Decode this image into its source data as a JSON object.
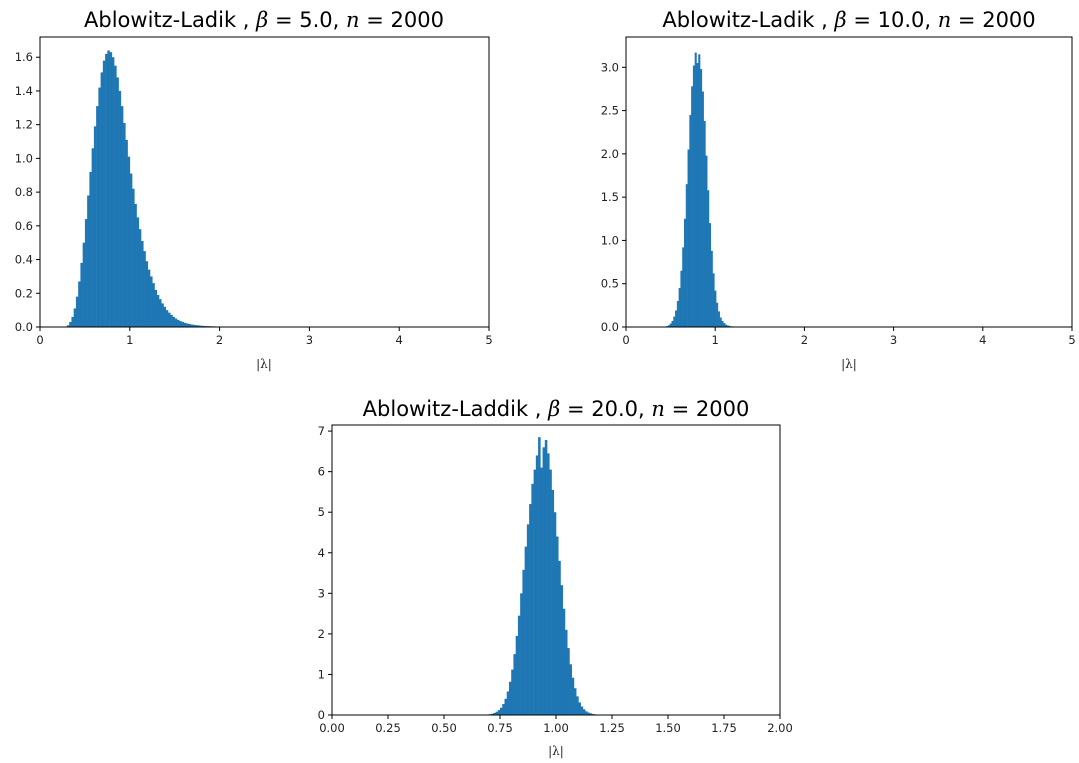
{
  "chart_data": [
    {
      "type": "bar",
      "title_prefix": "Ablowitz-Ladik , ",
      "beta_symbol": "β",
      "beta": "5.0",
      "n_symbol": "n",
      "n": "2000",
      "xlabel": "|λ|",
      "ylabel": "",
      "xlim": [
        0,
        5
      ],
      "ylim": [
        0,
        1.72
      ],
      "xticks": [
        "0",
        "1",
        "2",
        "3",
        "4",
        "5"
      ],
      "xtick_values": [
        0,
        1,
        2,
        3,
        4,
        5
      ],
      "yticks": [
        "0.0",
        "0.2",
        "0.4",
        "0.6",
        "0.8",
        "1.0",
        "1.2",
        "1.4",
        "1.6"
      ],
      "ytick_values": [
        0,
        0.2,
        0.4,
        0.6,
        0.8,
        1.0,
        1.2,
        1.4,
        1.6
      ],
      "color": "#1f77b4",
      "histogram": {
        "bin_start": 0.3,
        "bin_width": 0.025,
        "counts": [
          0.01,
          0.03,
          0.06,
          0.11,
          0.18,
          0.27,
          0.38,
          0.5,
          0.64,
          0.78,
          0.92,
          1.06,
          1.19,
          1.31,
          1.42,
          1.51,
          1.58,
          1.62,
          1.64,
          1.63,
          1.6,
          1.55,
          1.48,
          1.4,
          1.31,
          1.21,
          1.11,
          1.01,
          0.91,
          0.82,
          0.73,
          0.65,
          0.58,
          0.51,
          0.45,
          0.39,
          0.34,
          0.3,
          0.26,
          0.22,
          0.19,
          0.165,
          0.14,
          0.12,
          0.1,
          0.085,
          0.072,
          0.06,
          0.05,
          0.042,
          0.035,
          0.03,
          0.025,
          0.021,
          0.018,
          0.015,
          0.013,
          0.011,
          0.01,
          0.008,
          0.007,
          0.006,
          0.005,
          0.005,
          0.004,
          0.004,
          0.003,
          0.003,
          0.003,
          0.002,
          0.002,
          0.002,
          0.002,
          0.002,
          0.001,
          0.001,
          0.001,
          0.001
        ]
      }
    },
    {
      "type": "bar",
      "title_prefix": "Ablowitz-Ladik , ",
      "beta_symbol": "β",
      "beta": "10.0",
      "n_symbol": "n",
      "n": "2000",
      "xlabel": "|λ|",
      "ylabel": "",
      "xlim": [
        0,
        5
      ],
      "ylim": [
        0,
        3.35
      ],
      "xticks": [
        "0",
        "1",
        "2",
        "3",
        "4",
        "5"
      ],
      "xtick_values": [
        0,
        1,
        2,
        3,
        4,
        5
      ],
      "yticks": [
        "0.0",
        "0.5",
        "1.0",
        "1.5",
        "2.0",
        "2.5",
        "3.0"
      ],
      "ytick_values": [
        0,
        0.5,
        1.0,
        1.5,
        2.0,
        2.5,
        3.0
      ],
      "color": "#1f77b4",
      "histogram": {
        "bin_start": 0.45,
        "bin_width": 0.02,
        "counts": [
          0.01,
          0.02,
          0.04,
          0.07,
          0.12,
          0.19,
          0.3,
          0.45,
          0.65,
          0.92,
          1.25,
          1.65,
          2.05,
          2.45,
          2.78,
          3.02,
          3.17,
          3.05,
          3.15,
          2.98,
          2.72,
          2.38,
          1.98,
          1.58,
          1.2,
          0.88,
          0.62,
          0.42,
          0.28,
          0.18,
          0.11,
          0.07,
          0.045,
          0.028,
          0.018,
          0.012,
          0.008,
          0.006,
          0.004,
          0.003,
          0.002,
          0.002,
          0.001,
          0.001,
          0.001,
          0.001,
          0.001,
          0.001,
          0.001,
          0.001,
          0.001,
          0.001
        ]
      }
    },
    {
      "type": "bar",
      "title_prefix": "Ablowitz-Laddik , ",
      "beta_symbol": "β",
      "beta": "20.0",
      "n_symbol": "n",
      "n": "2000",
      "xlabel": "|λ|",
      "ylabel": "",
      "xlim": [
        0,
        2
      ],
      "ylim": [
        0,
        7.15
      ],
      "xticks": [
        "0.00",
        "0.25",
        "0.50",
        "0.75",
        "1.00",
        "1.25",
        "1.50",
        "1.75",
        "2.00"
      ],
      "xtick_values": [
        0,
        0.25,
        0.5,
        0.75,
        1.0,
        1.25,
        1.5,
        1.75,
        2.0
      ],
      "yticks": [
        "0",
        "1",
        "2",
        "3",
        "4",
        "5",
        "6",
        "7"
      ],
      "ytick_values": [
        0,
        1,
        2,
        3,
        4,
        5,
        6,
        7
      ],
      "color": "#1f77b4",
      "histogram": {
        "bin_start": 0.7,
        "bin_width": 0.01,
        "counts": [
          0.02,
          0.03,
          0.05,
          0.08,
          0.12,
          0.18,
          0.27,
          0.4,
          0.58,
          0.82,
          1.12,
          1.5,
          1.95,
          2.45,
          3.0,
          3.58,
          4.15,
          4.7,
          5.2,
          5.7,
          6.05,
          6.4,
          6.85,
          6.1,
          6.6,
          6.78,
          6.45,
          6.05,
          5.55,
          5.0,
          4.4,
          3.8,
          3.2,
          2.62,
          2.1,
          1.65,
          1.25,
          0.92,
          0.66,
          0.46,
          0.31,
          0.21,
          0.14,
          0.09,
          0.06,
          0.04,
          0.025,
          0.015,
          0.01,
          0.006,
          0.004,
          0.002,
          0.001,
          0.001,
          0.001
        ]
      }
    }
  ]
}
